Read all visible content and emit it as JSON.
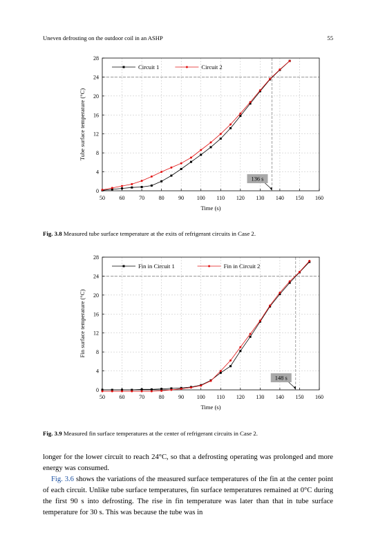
{
  "header": {
    "title": "Uneven defrosting on the outdoor coil in an ASHP",
    "page": "55"
  },
  "figures": [
    {
      "caption_label": "Fig. 3.8",
      "caption_text": "Measured tube surface temperature at the exits of refrigerant circuits in Case 2.",
      "annotation": "136 s"
    },
    {
      "caption_label": "Fig. 3.9",
      "caption_text": "Measured fin surface temperatures at the center of refrigerant circuits in Case 2.",
      "annotation": "148 s"
    }
  ],
  "chart_data": [
    {
      "type": "line",
      "xlabel": "Time (s)",
      "ylabel": "Tube surface temperature (°C)",
      "xlim": [
        50,
        160
      ],
      "ylim": [
        0,
        28
      ],
      "xticks": [
        50,
        60,
        70,
        80,
        90,
        100,
        110,
        120,
        130,
        140,
        150,
        160
      ],
      "yticks": [
        0,
        4,
        8,
        12,
        16,
        20,
        24,
        28
      ],
      "grid": true,
      "legend_position": "top-left",
      "reference_lines": {
        "x": 136,
        "y": 24
      },
      "annotation": {
        "text": "136 s",
        "x": 136,
        "y": 0
      },
      "series": [
        {
          "name": "Circuit 1",
          "color": "#000000",
          "marker": "square",
          "x": [
            50,
            55,
            60,
            65,
            70,
            75,
            80,
            85,
            90,
            95,
            100,
            105,
            110,
            115,
            120,
            125,
            130,
            135,
            140,
            145
          ],
          "y": [
            0.1,
            0.3,
            0.5,
            0.7,
            0.8,
            1.1,
            2.0,
            3.2,
            4.6,
            6.1,
            7.6,
            9.2,
            11.0,
            13.2,
            15.8,
            18.4,
            21.0,
            23.5,
            25.5,
            27.4
          ]
        },
        {
          "name": "Circuit 2",
          "color": "#e01010",
          "marker": "circle",
          "x": [
            50,
            55,
            60,
            65,
            70,
            75,
            80,
            85,
            90,
            95,
            100,
            105,
            110,
            115,
            120,
            125,
            130,
            135,
            140,
            145
          ],
          "y": [
            0.2,
            0.6,
            1.0,
            1.4,
            2.1,
            3.0,
            4.0,
            4.9,
            5.8,
            7.0,
            8.6,
            10.2,
            12.0,
            14.0,
            16.3,
            18.7,
            21.2,
            23.6,
            25.6,
            27.4
          ]
        }
      ]
    },
    {
      "type": "line",
      "xlabel": "Time (s)",
      "ylabel": "Fin surface temperature (°C)",
      "xlim": [
        50,
        160
      ],
      "ylim": [
        0,
        28
      ],
      "xticks": [
        50,
        60,
        70,
        80,
        90,
        100,
        110,
        120,
        130,
        140,
        150,
        160
      ],
      "yticks": [
        0,
        4,
        8,
        12,
        16,
        20,
        24,
        28
      ],
      "grid": true,
      "legend_position": "top-left",
      "reference_lines": {
        "x": 148,
        "y": 24
      },
      "annotation": {
        "text": "148 s",
        "x": 148,
        "y": 0
      },
      "series": [
        {
          "name": "Fin in Circuit 1",
          "color": "#000000",
          "marker": "square",
          "x": [
            50,
            55,
            60,
            65,
            70,
            75,
            80,
            85,
            90,
            95,
            100,
            105,
            110,
            115,
            120,
            125,
            130,
            135,
            140,
            145,
            150,
            155
          ],
          "y": [
            0.0,
            0.0,
            0.0,
            0.0,
            0.1,
            0.1,
            0.2,
            0.3,
            0.4,
            0.6,
            1.0,
            2.0,
            3.6,
            5.0,
            8.2,
            11.2,
            14.4,
            17.6,
            20.2,
            22.6,
            24.8,
            27.0
          ]
        },
        {
          "name": "Fin in Circuit 2",
          "color": "#e01010",
          "marker": "circle",
          "x": [
            50,
            55,
            60,
            65,
            70,
            75,
            80,
            85,
            90,
            95,
            100,
            105,
            110,
            115,
            120,
            125,
            130,
            135,
            140,
            145,
            150,
            155
          ],
          "y": [
            -0.3,
            -0.3,
            -0.3,
            -0.3,
            -0.3,
            -0.3,
            -0.2,
            0.0,
            0.2,
            0.5,
            0.9,
            1.9,
            4.0,
            6.2,
            9.0,
            11.8,
            14.6,
            17.8,
            20.5,
            22.9,
            24.9,
            27.2
          ]
        }
      ]
    }
  ],
  "body": {
    "p1": "longer for the lower circuit to reach 24°C, so that a defrosting operating was prolonged and more energy was consumed.",
    "p2_ref": "Fig. 3.6",
    "p2_rest": " shows the variations of the measured surface temperatures of the fin at the center point of each circuit. Unlike tube surface temperatures, fin surface temperatures remained at 0°C during the first 90 s into defrosting. The rise in fin temperature was later than that in tube surface temperature for 30 s. This was because the tube was in"
  }
}
